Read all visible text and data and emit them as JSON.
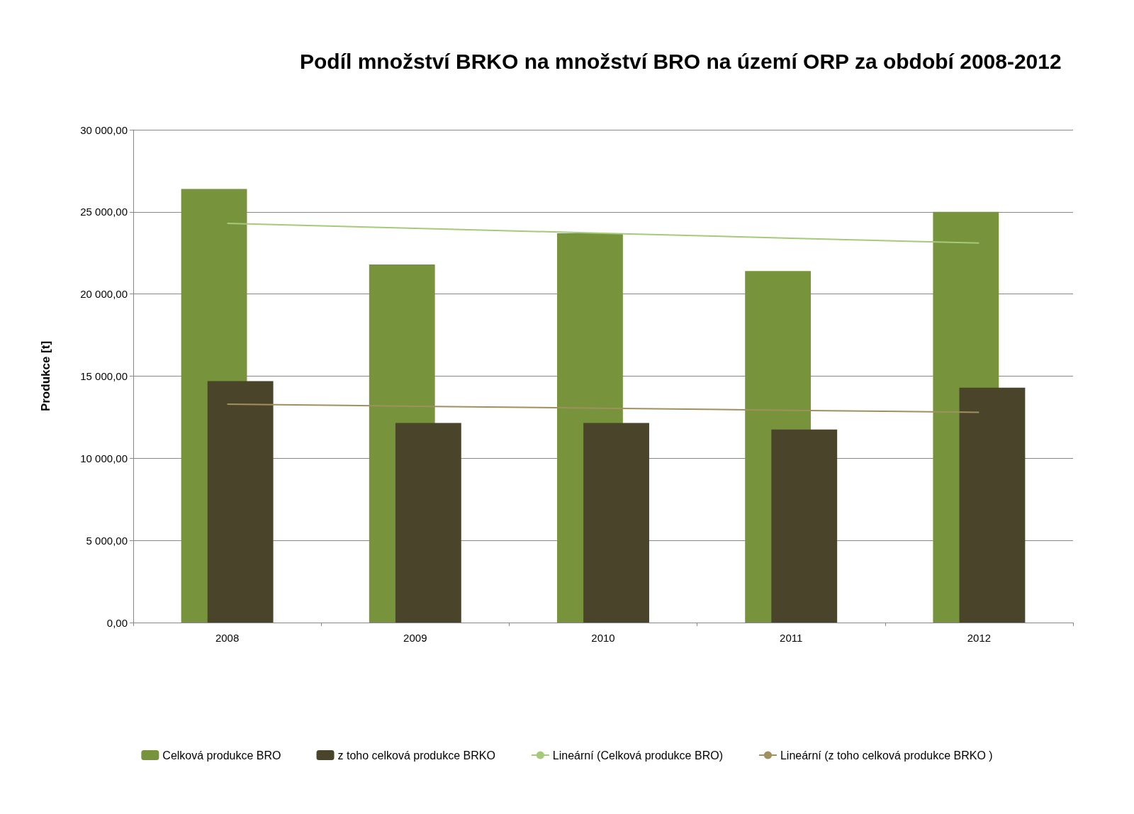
{
  "chart_data": {
    "type": "bar",
    "title": "Podíl množství BRKO na množství BRO na území ORP za období 2008-2012",
    "ylabel": "Produkce [t]",
    "categories": [
      "2008",
      "2009",
      "2010",
      "2011",
      "2012"
    ],
    "series": [
      {
        "name": "Celková produkce BRO",
        "color": "#77933c",
        "values": [
          26400,
          21800,
          23700,
          21400,
          25000
        ]
      },
      {
        "name": "z toho celková produkce BRKO",
        "color": "#4a452a",
        "values": [
          14700,
          12150,
          12150,
          11750,
          14300
        ]
      },
      {
        "name": "Lineární (Celková produkce BRO)",
        "type": "line",
        "color": "#a6c97a",
        "values": [
          24300,
          24000,
          23700,
          23400,
          23100
        ]
      },
      {
        "name": "Lineární (z toho celková produkce BRKO )",
        "type": "line",
        "color": "#a09060",
        "values": [
          13300,
          13170,
          13050,
          12920,
          12800
        ]
      }
    ],
    "ylim": [
      0,
      30000
    ],
    "yticks": [
      {
        "value": 0,
        "label": "0,00"
      },
      {
        "value": 5000,
        "label": "5 000,00"
      },
      {
        "value": 10000,
        "label": "10 000,00"
      },
      {
        "value": 15000,
        "label": "15 000,00"
      },
      {
        "value": 20000,
        "label": "20 000,00"
      },
      {
        "value": 25000,
        "label": "25 000,00"
      },
      {
        "value": 30000,
        "label": "30 000,00"
      }
    ],
    "grid": "y",
    "legend": "bottom",
    "marker": "none",
    "line_style": "solid"
  }
}
